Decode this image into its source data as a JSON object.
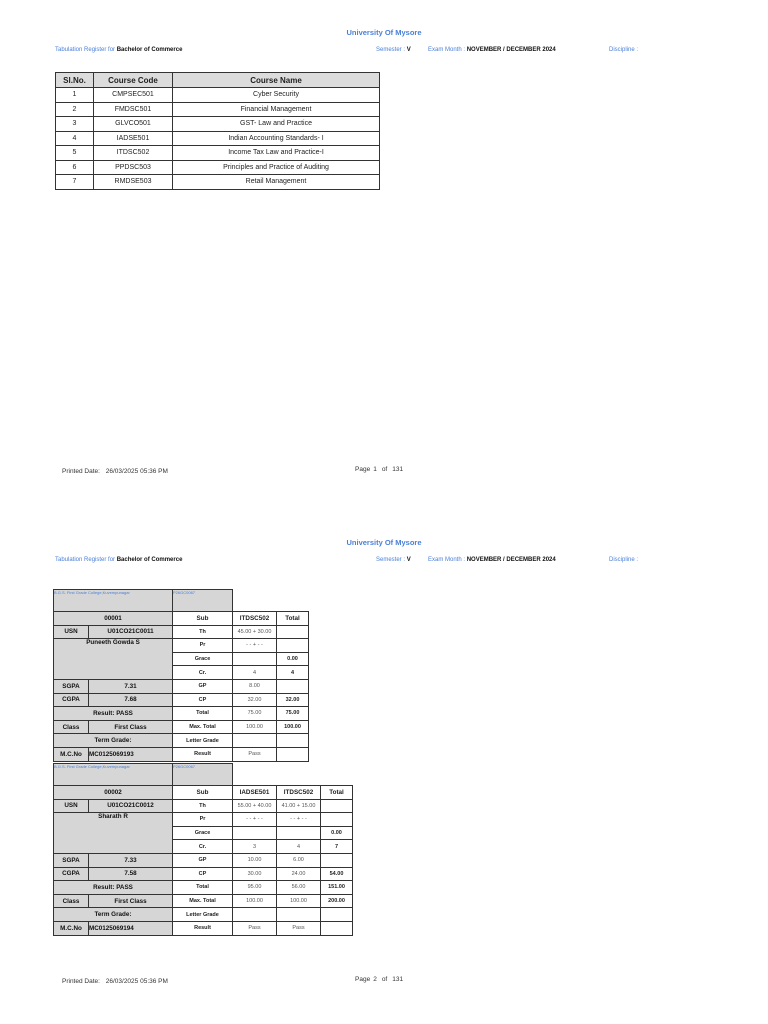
{
  "pages": [
    {
      "university": "University Of Mysore",
      "register_label": "Tabulation Register for",
      "program": "Bachelor of Commerce",
      "semester_label": "Semester :",
      "semester": "V",
      "exam_month_label": "Exam Month :",
      "exam_month": "NOVEMBER / DECEMBER 2024",
      "discipline_label": "Discipline :",
      "printed_label": "Printed Date:",
      "printed_date": "26/03/2025 05:36 PM",
      "page_label": "Page",
      "page_number": "1",
      "of_label": "of",
      "total_pages": "131"
    },
    {
      "university": "University Of Mysore",
      "register_label": "Tabulation Register for",
      "program": "Bachelor of Commerce",
      "semester_label": "Semester :",
      "semester": "V",
      "exam_month_label": "Exam Month :",
      "exam_month": "NOVEMBER / DECEMBER 2024",
      "discipline_label": "Discipline :",
      "printed_label": "Printed Date:",
      "printed_date": "26/03/2025 05:36 PM",
      "page_label": "Page",
      "page_number": "2",
      "of_label": "of",
      "total_pages": "131"
    }
  ],
  "courses": {
    "headers": [
      "Sl.No.",
      "Course Code",
      "Course Name"
    ],
    "rows": [
      [
        "1",
        "CMPSEC501",
        "Cyber Security"
      ],
      [
        "2",
        "FMDSC501",
        "Financial Management"
      ],
      [
        "3",
        "GLVCO501",
        "GST- Law and Practice"
      ],
      [
        "4",
        "IADSE501",
        "Indian Accounting Standards- I"
      ],
      [
        "5",
        "ITDSC502",
        "Income Tax Law and Practice-I"
      ],
      [
        "6",
        "PPDSC503",
        "Principles and Practice of Auditing"
      ],
      [
        "7",
        "RMDSE503",
        "Retail Management"
      ]
    ]
  },
  "row_labels": [
    "Sub",
    "Th",
    "Pr",
    "Grace",
    "Cr.",
    "GP",
    "CP",
    "Total",
    "Max. Total",
    "Letter Grade",
    "Result"
  ],
  "field_labels": {
    "usn": "USN",
    "sgpa": "SGPA",
    "cgpa": "CGPA",
    "class": "Class",
    "term_grade": "Term Grade:",
    "mcno": "M.C.No",
    "total": "Total"
  },
  "students": [
    {
      "college": "B.G.S. First Grade College,Kuvempunagar",
      "college_code": "P26GC0067",
      "serial": "00001",
      "usn": "U01CO21C0011",
      "name": "Puneeth Gowda S",
      "sgpa": "7.31",
      "cgpa": "7.68",
      "result": "Result: PASS",
      "class": "First Class",
      "mcno": "MC0125069193",
      "subjects": [
        {
          "code": "ITDSC502",
          "th": "45.00 + 30.00",
          "pr": "- - + - -",
          "grace": "",
          "cr": "4",
          "gp": "8.00",
          "cp": "32.00",
          "total": "75.00",
          "max": "100.00",
          "letter": "",
          "result": "Pass"
        }
      ],
      "totals": {
        "grace": "0.00",
        "cr": "4",
        "cp": "32.00",
        "total": "75.00",
        "max": "100.00"
      }
    },
    {
      "college": "B.G.S. First Grade College,Kuvempunagar",
      "college_code": "P26GC0067",
      "serial": "00002",
      "usn": "U01CO21C0012",
      "name": "Sharath R",
      "sgpa": "7.33",
      "cgpa": "7.58",
      "result": "Result: PASS",
      "class": "First Class",
      "mcno": "MC0125069194",
      "subjects": [
        {
          "code": "IADSE501",
          "th": "55.00 + 40.00",
          "pr": "- - + - -",
          "grace": "",
          "cr": "3",
          "gp": "10.00",
          "cp": "30.00",
          "total": "95.00",
          "max": "100.00",
          "letter": "",
          "result": "Pass"
        },
        {
          "code": "ITDSC502",
          "th": "41.00 + 15.00",
          "pr": "- - + - -",
          "grace": "",
          "cr": "4",
          "gp": "6.00",
          "cp": "24.00",
          "total": "56.00",
          "max": "100.00",
          "letter": "",
          "result": "Pass"
        }
      ],
      "totals": {
        "grace": "0.00",
        "cr": "7",
        "cp": "54.00",
        "total": "151.00",
        "max": "200.00"
      }
    }
  ]
}
